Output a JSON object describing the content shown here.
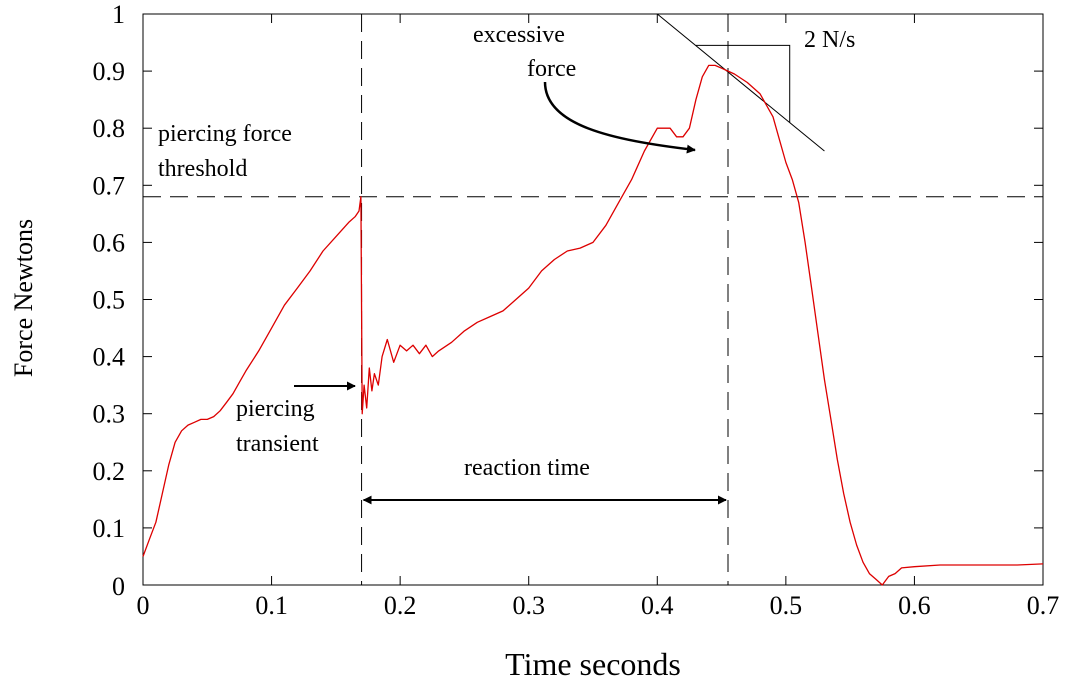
{
  "chart_data": {
    "type": "line",
    "title": "",
    "xlabel": "Time seconds",
    "ylabel": "Force Newtons",
    "xlim": [
      0,
      0.7
    ],
    "ylim": [
      0,
      1
    ],
    "x_ticks": [
      "0",
      "0.1",
      "0.2",
      "0.3",
      "0.4",
      "0.5",
      "0.6",
      "0.7"
    ],
    "y_ticks": [
      "0",
      "0.1",
      "0.2",
      "0.3",
      "0.4",
      "0.5",
      "0.6",
      "0.7",
      "0.8",
      "0.9",
      "1"
    ],
    "grid": false,
    "series": [
      {
        "color": "#dd0000",
        "points": [
          [
            0.0,
            0.05
          ],
          [
            0.005,
            0.08
          ],
          [
            0.01,
            0.11
          ],
          [
            0.015,
            0.16
          ],
          [
            0.02,
            0.21
          ],
          [
            0.025,
            0.25
          ],
          [
            0.03,
            0.27
          ],
          [
            0.035,
            0.28
          ],
          [
            0.04,
            0.285
          ],
          [
            0.045,
            0.29
          ],
          [
            0.05,
            0.29
          ],
          [
            0.055,
            0.295
          ],
          [
            0.06,
            0.305
          ],
          [
            0.065,
            0.32
          ],
          [
            0.07,
            0.335
          ],
          [
            0.075,
            0.355
          ],
          [
            0.08,
            0.375
          ],
          [
            0.09,
            0.41
          ],
          [
            0.1,
            0.45
          ],
          [
            0.11,
            0.49
          ],
          [
            0.12,
            0.52
          ],
          [
            0.13,
            0.55
          ],
          [
            0.14,
            0.585
          ],
          [
            0.15,
            0.61
          ],
          [
            0.16,
            0.635
          ],
          [
            0.165,
            0.645
          ],
          [
            0.168,
            0.655
          ],
          [
            0.1695,
            0.68
          ],
          [
            0.1705,
            0.3
          ],
          [
            0.172,
            0.35
          ],
          [
            0.174,
            0.31
          ],
          [
            0.176,
            0.38
          ],
          [
            0.178,
            0.34
          ],
          [
            0.18,
            0.37
          ],
          [
            0.183,
            0.35
          ],
          [
            0.186,
            0.4
          ],
          [
            0.19,
            0.43
          ],
          [
            0.195,
            0.39
          ],
          [
            0.2,
            0.42
          ],
          [
            0.205,
            0.41
          ],
          [
            0.21,
            0.42
          ],
          [
            0.215,
            0.405
          ],
          [
            0.22,
            0.42
          ],
          [
            0.225,
            0.4
          ],
          [
            0.23,
            0.41
          ],
          [
            0.24,
            0.425
          ],
          [
            0.25,
            0.445
          ],
          [
            0.26,
            0.46
          ],
          [
            0.27,
            0.47
          ],
          [
            0.28,
            0.48
          ],
          [
            0.29,
            0.5
          ],
          [
            0.3,
            0.52
          ],
          [
            0.31,
            0.55
          ],
          [
            0.32,
            0.57
          ],
          [
            0.33,
            0.585
          ],
          [
            0.34,
            0.59
          ],
          [
            0.35,
            0.6
          ],
          [
            0.36,
            0.63
          ],
          [
            0.37,
            0.67
          ],
          [
            0.38,
            0.71
          ],
          [
            0.39,
            0.76
          ],
          [
            0.4,
            0.8
          ],
          [
            0.41,
            0.8
          ],
          [
            0.415,
            0.785
          ],
          [
            0.42,
            0.785
          ],
          [
            0.425,
            0.8
          ],
          [
            0.43,
            0.85
          ],
          [
            0.435,
            0.89
          ],
          [
            0.44,
            0.91
          ],
          [
            0.445,
            0.91
          ],
          [
            0.45,
            0.905
          ],
          [
            0.455,
            0.9
          ],
          [
            0.46,
            0.895
          ],
          [
            0.47,
            0.88
          ],
          [
            0.48,
            0.86
          ],
          [
            0.49,
            0.82
          ],
          [
            0.495,
            0.78
          ],
          [
            0.5,
            0.74
          ],
          [
            0.505,
            0.71
          ],
          [
            0.51,
            0.67
          ],
          [
            0.515,
            0.6
          ],
          [
            0.52,
            0.52
          ],
          [
            0.525,
            0.44
          ],
          [
            0.53,
            0.36
          ],
          [
            0.535,
            0.29
          ],
          [
            0.54,
            0.22
          ],
          [
            0.545,
            0.16
          ],
          [
            0.55,
            0.11
          ],
          [
            0.555,
            0.07
          ],
          [
            0.56,
            0.04
          ],
          [
            0.565,
            0.02
          ],
          [
            0.57,
            0.01
          ],
          [
            0.575,
            0.0
          ],
          [
            0.58,
            0.015
          ],
          [
            0.585,
            0.02
          ],
          [
            0.59,
            0.03
          ],
          [
            0.6,
            0.032
          ],
          [
            0.62,
            0.035
          ],
          [
            0.65,
            0.035
          ],
          [
            0.68,
            0.035
          ],
          [
            0.7,
            0.037
          ]
        ]
      }
    ],
    "reference_lines": {
      "threshold_y": 0.68,
      "vertical_x": [
        0.17,
        0.455
      ]
    },
    "slope_line": {
      "x": [
        0.4,
        0.53
      ],
      "y": [
        1.0,
        0.76
      ]
    },
    "annotations": {
      "threshold_label_1": "piercing force",
      "threshold_label_2": "threshold",
      "transient_label_1": "piercing",
      "transient_label_2": "transient",
      "excessive_label_1": "excessive",
      "excessive_label_2": "force",
      "reaction_label": "reaction time",
      "slope_label": "2 N/s"
    }
  }
}
